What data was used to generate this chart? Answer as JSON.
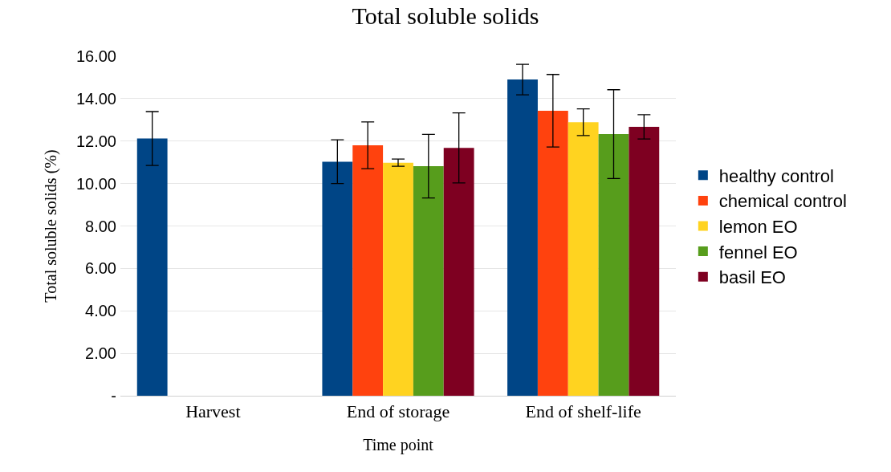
{
  "chart_data": {
    "type": "bar",
    "title": "Total soluble solids",
    "xlabel": "Time point",
    "ylabel": "Total soluble solids (%)",
    "categories": [
      "Harvest",
      "End of storage",
      "End of shelf-life"
    ],
    "series": [
      {
        "name": "healthy control",
        "color": "#004586",
        "values": [
          12.12,
          11.03,
          14.9
        ],
        "errors": [
          1.27,
          1.03,
          0.72
        ]
      },
      {
        "name": "chemical control",
        "color": "#ff420e",
        "values": [
          null,
          11.8,
          13.43
        ],
        "errors": [
          null,
          1.1,
          1.71
        ]
      },
      {
        "name": "lemon EO",
        "color": "#ffd320",
        "values": [
          null,
          10.98,
          12.89
        ],
        "errors": [
          null,
          0.17,
          0.63
        ]
      },
      {
        "name": "fennel EO",
        "color": "#579d1c",
        "values": [
          null,
          10.82,
          12.33
        ],
        "errors": [
          null,
          1.5,
          2.09
        ]
      },
      {
        "name": "basil EO",
        "color": "#7e0021",
        "values": [
          null,
          11.68,
          12.67
        ],
        "errors": [
          null,
          1.65,
          0.57
        ]
      }
    ],
    "ylim": [
      0,
      16
    ],
    "yticks": [
      {
        "value": 0,
        "label": "-"
      },
      {
        "value": 2,
        "label": "2.00"
      },
      {
        "value": 4,
        "label": "4.00"
      },
      {
        "value": 6,
        "label": "6.00"
      },
      {
        "value": 8,
        "label": "8.00"
      },
      {
        "value": 10,
        "label": "10.00"
      },
      {
        "value": 12,
        "label": "12.00"
      },
      {
        "value": 14,
        "label": "14.00"
      },
      {
        "value": 16,
        "label": "16.00"
      }
    ],
    "grid": "y",
    "legend": "right"
  }
}
